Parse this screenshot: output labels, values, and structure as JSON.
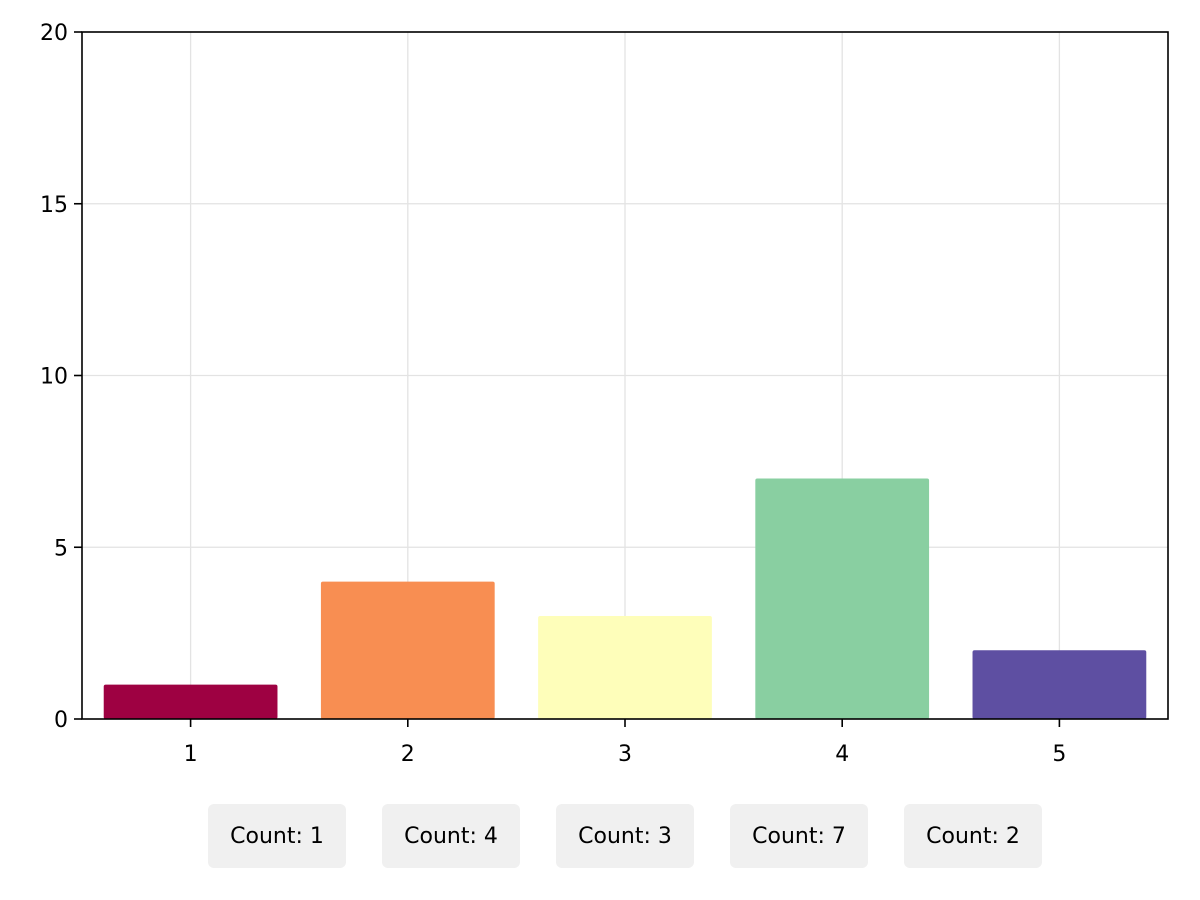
{
  "chart_data": {
    "type": "bar",
    "categories": [
      "1",
      "2",
      "3",
      "4",
      "5"
    ],
    "values": [
      1,
      4,
      3,
      7,
      2
    ],
    "colors": [
      "#9e0142",
      "#f88e52",
      "#fefeba",
      "#89cfa1",
      "#5e4fa2"
    ],
    "xlabel": "",
    "ylabel": "",
    "ylim": [
      0,
      20
    ],
    "yticks": [
      0,
      5,
      10,
      15,
      20
    ],
    "grid": true,
    "legend": "none"
  },
  "counts": [
    {
      "label": "Count: 1"
    },
    {
      "label": "Count: 4"
    },
    {
      "label": "Count: 3"
    },
    {
      "label": "Count: 7"
    },
    {
      "label": "Count: 2"
    }
  ]
}
